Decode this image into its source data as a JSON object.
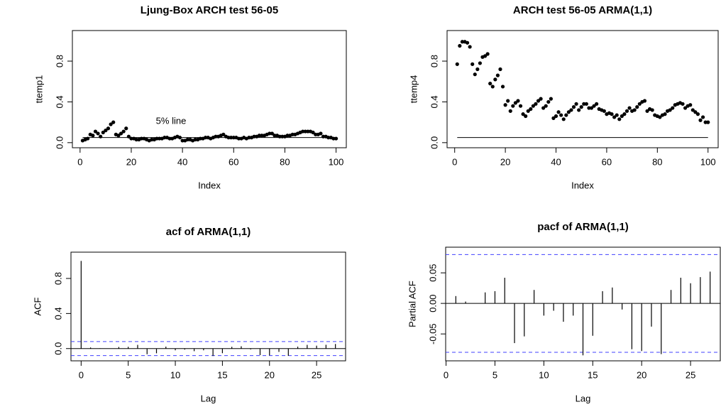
{
  "chart_data": [
    {
      "type": "scatter",
      "title": "Ljung-Box ARCH test 56-05",
      "x_label": "Index",
      "y_label": "ttemp1",
      "annotation": "5% line",
      "x": [
        1,
        2,
        3,
        4,
        5,
        6,
        7,
        8,
        9,
        10,
        11,
        12,
        13,
        14,
        15,
        16,
        17,
        18,
        19,
        20,
        21,
        22,
        23,
        24,
        25,
        26,
        27,
        28,
        29,
        30,
        31,
        32,
        33,
        34,
        35,
        36,
        37,
        38,
        39,
        40,
        41,
        42,
        43,
        44,
        45,
        46,
        47,
        48,
        49,
        50,
        51,
        52,
        53,
        54,
        55,
        56,
        57,
        58,
        59,
        60,
        61,
        62,
        63,
        64,
        65,
        66,
        67,
        68,
        69,
        70,
        71,
        72,
        73,
        74,
        75,
        76,
        77,
        78,
        79,
        80,
        81,
        82,
        83,
        84,
        85,
        86,
        87,
        88,
        89,
        90,
        91,
        92,
        93,
        94,
        95,
        96,
        97,
        98,
        99,
        100
      ],
      "values": [
        0.02,
        0.03,
        0.04,
        0.08,
        0.07,
        0.11,
        0.09,
        0.06,
        0.1,
        0.12,
        0.14,
        0.18,
        0.2,
        0.08,
        0.07,
        0.09,
        0.11,
        0.14,
        0.06,
        0.04,
        0.04,
        0.03,
        0.03,
        0.04,
        0.04,
        0.03,
        0.02,
        0.03,
        0.03,
        0.04,
        0.04,
        0.04,
        0.05,
        0.05,
        0.04,
        0.04,
        0.05,
        0.06,
        0.05,
        0.02,
        0.02,
        0.03,
        0.03,
        0.02,
        0.03,
        0.03,
        0.04,
        0.04,
        0.05,
        0.05,
        0.04,
        0.05,
        0.06,
        0.06,
        0.07,
        0.08,
        0.06,
        0.05,
        0.05,
        0.05,
        0.05,
        0.04,
        0.04,
        0.05,
        0.04,
        0.05,
        0.05,
        0.06,
        0.06,
        0.07,
        0.07,
        0.07,
        0.08,
        0.09,
        0.09,
        0.07,
        0.07,
        0.06,
        0.06,
        0.06,
        0.07,
        0.07,
        0.08,
        0.08,
        0.09,
        0.1,
        0.11,
        0.11,
        0.11,
        0.11,
        0.1,
        0.08,
        0.08,
        0.09,
        0.06,
        0.06,
        0.05,
        0.05,
        0.04,
        0.04
      ],
      "hline": 0.05,
      "color": "#000000",
      "xlim": [
        -3,
        104
      ],
      "xticks": [
        0,
        20,
        40,
        60,
        80,
        100
      ],
      "ylim": [
        -0.05,
        1.1
      ],
      "yticks": [
        {
          "value": 0,
          "label": "0.0"
        },
        {
          "value": 0.4,
          "label": "0.4"
        },
        {
          "value": 0.8,
          "label": "0.8"
        }
      ]
    },
    {
      "type": "scatter",
      "title": "ARCH test 56-05 ARMA(1,1)",
      "x_label": "Index",
      "y_label": "ttemp4",
      "x": [
        1,
        2,
        3,
        4,
        5,
        6,
        7,
        8,
        9,
        10,
        11,
        12,
        13,
        14,
        15,
        16,
        17,
        18,
        19,
        20,
        21,
        22,
        23,
        24,
        25,
        26,
        27,
        28,
        29,
        30,
        31,
        32,
        33,
        34,
        35,
        36,
        37,
        38,
        39,
        40,
        41,
        42,
        43,
        44,
        45,
        46,
        47,
        48,
        49,
        50,
        51,
        52,
        53,
        54,
        55,
        56,
        57,
        58,
        59,
        60,
        61,
        62,
        63,
        64,
        65,
        66,
        67,
        68,
        69,
        70,
        71,
        72,
        73,
        74,
        75,
        76,
        77,
        78,
        79,
        80,
        81,
        82,
        83,
        84,
        85,
        86,
        87,
        88,
        89,
        90,
        91,
        92,
        93,
        94,
        95,
        96,
        97,
        98,
        99,
        100
      ],
      "values": [
        0.77,
        0.95,
        0.99,
        0.99,
        0.98,
        0.94,
        0.77,
        0.67,
        0.72,
        0.78,
        0.84,
        0.85,
        0.87,
        0.58,
        0.55,
        0.62,
        0.66,
        0.72,
        0.55,
        0.37,
        0.41,
        0.31,
        0.36,
        0.39,
        0.41,
        0.36,
        0.28,
        0.26,
        0.31,
        0.33,
        0.36,
        0.38,
        0.41,
        0.43,
        0.34,
        0.36,
        0.4,
        0.43,
        0.24,
        0.26,
        0.3,
        0.27,
        0.23,
        0.27,
        0.3,
        0.32,
        0.35,
        0.38,
        0.32,
        0.35,
        0.38,
        0.38,
        0.34,
        0.34,
        0.36,
        0.38,
        0.33,
        0.32,
        0.31,
        0.28,
        0.29,
        0.28,
        0.25,
        0.27,
        0.23,
        0.26,
        0.28,
        0.31,
        0.34,
        0.31,
        0.32,
        0.35,
        0.38,
        0.4,
        0.41,
        0.31,
        0.33,
        0.32,
        0.27,
        0.26,
        0.25,
        0.27,
        0.28,
        0.31,
        0.32,
        0.34,
        0.37,
        0.38,
        0.39,
        0.38,
        0.34,
        0.36,
        0.37,
        0.32,
        0.3,
        0.28,
        0.22,
        0.25,
        0.2,
        0.2
      ],
      "hline": 0.05,
      "color": "#000000",
      "xlim": [
        -3,
        104
      ],
      "xticks": [
        0,
        20,
        40,
        60,
        80,
        100
      ],
      "ylim": [
        -0.05,
        1.1
      ],
      "yticks": [
        {
          "value": 0,
          "label": "0.0"
        },
        {
          "value": 0.4,
          "label": "0.4"
        },
        {
          "value": 0.8,
          "label": "0.8"
        }
      ]
    },
    {
      "type": "stem",
      "title": "acf of ARMA(1,1)",
      "x_label": "Lag",
      "y_label": "ACF",
      "x": [
        0,
        1,
        2,
        3,
        4,
        5,
        6,
        7,
        8,
        9,
        10,
        11,
        12,
        13,
        14,
        15,
        16,
        17,
        18,
        19,
        20,
        21,
        22,
        23,
        24,
        25,
        26,
        27
      ],
      "values": [
        1.0,
        0.012,
        0.003,
        0.0,
        0.018,
        0.02,
        0.042,
        -0.065,
        -0.054,
        0.022,
        -0.02,
        -0.012,
        -0.03,
        -0.02,
        -0.085,
        -0.053,
        0.02,
        0.026,
        -0.01,
        -0.075,
        -0.078,
        -0.038,
        -0.083,
        0.022,
        0.042,
        0.033,
        0.043,
        0.052
      ],
      "ci": 0.08,
      "ci_color": "#4040ff",
      "color": "#000000",
      "xlim": [
        -1.08,
        28.08
      ],
      "xticks": [
        0,
        5,
        10,
        15,
        20,
        25
      ],
      "ylim": [
        -0.14,
        1.1
      ],
      "yticks": [
        {
          "value": 0,
          "label": "0.0"
        },
        {
          "value": 0.4,
          "label": "0.4"
        },
        {
          "value": 0.8,
          "label": "0.8"
        }
      ]
    },
    {
      "type": "stem",
      "title": "pacf of ARMA(1,1)",
      "x_label": "Lag",
      "y_label": "Partial ACF",
      "x": [
        1,
        2,
        3,
        4,
        5,
        6,
        7,
        8,
        9,
        10,
        11,
        12,
        13,
        14,
        15,
        16,
        17,
        18,
        19,
        20,
        21,
        22,
        23,
        24,
        25,
        26,
        27
      ],
      "values": [
        0.012,
        0.003,
        0.0,
        0.018,
        0.02,
        0.042,
        -0.065,
        -0.054,
        0.022,
        -0.02,
        -0.012,
        -0.03,
        -0.02,
        -0.085,
        -0.053,
        0.02,
        0.026,
        -0.01,
        -0.075,
        -0.078,
        -0.038,
        -0.083,
        0.022,
        0.042,
        0.033,
        0.043,
        0.052
      ],
      "ci": 0.08,
      "ci_color": "#4040ff",
      "color": "#000000",
      "xlim": [
        -0.04,
        28.04
      ],
      "xticks": [
        0,
        5,
        10,
        15,
        20,
        25
      ],
      "ylim": [
        -0.094,
        0.092
      ],
      "yticks": [
        {
          "value": -0.05,
          "label": "-0.05"
        },
        {
          "value": 0,
          "label": "0.00"
        },
        {
          "value": 0.05,
          "label": "0.05"
        }
      ]
    }
  ]
}
